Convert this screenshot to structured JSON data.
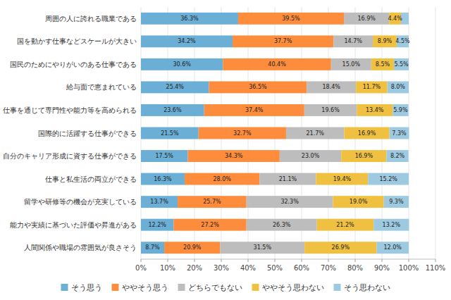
{
  "chart_data": {
    "type": "bar",
    "orientation": "horizontal",
    "stacked": true,
    "categories": [
      "周囲の人に誇れる職業である",
      "国を動かす仕事などスケールが大きい",
      "国民のためにやりがいのある仕事である",
      "給与面で恵まれている",
      "仕事を通じて専門性や能力等を高められる",
      "国際的に活躍する仕事ができる",
      "自分のキャリア形成に資する仕事ができる",
      "仕事と私生活の両立ができる",
      "留学や研修等の機会が充実している",
      "能力や実績に基づいた評価や昇進がある",
      "人間関係や職場の雰囲気が良さそう"
    ],
    "series": [
      {
        "name": "そう思う",
        "color": "#6baed6",
        "values": [
          36.3,
          34.2,
          30.6,
          25.4,
          23.6,
          21.5,
          17.5,
          16.3,
          13.7,
          12.2,
          8.7
        ],
        "value_labels": [
          "36.3%",
          "34.2%",
          "30.6%",
          "25.4%",
          "23.6%",
          "21.5%",
          "17.5%",
          "16.3%",
          "13.7%",
          "12.2%",
          "8.7%"
        ]
      },
      {
        "name": "ややそう思う",
        "color": "#fd8d3c",
        "values": [
          39.5,
          37.7,
          40.4,
          36.5,
          37.4,
          32.7,
          34.3,
          28.0,
          25.7,
          27.2,
          20.9
        ],
        "value_labels": [
          "39.5%",
          "37.7%",
          "40.4%",
          "36.5%",
          "37.4%",
          "32.7%",
          "34.3%",
          "28.0%",
          "25.7%",
          "27.2%",
          "20.9%"
        ]
      },
      {
        "name": "どちらでもない",
        "color": "#bdbdbd",
        "values": [
          16.9,
          14.7,
          15.0,
          18.4,
          19.6,
          21.7,
          23.0,
          21.1,
          32.3,
          26.3,
          31.5
        ],
        "value_labels": [
          "16.9%",
          "14.7%",
          "15.0%",
          "18.4%",
          "19.6%",
          "21.7%",
          "23.0%",
          "21.1%",
          "32.3%",
          "26.3%",
          "31.5%"
        ]
      },
      {
        "name": "ややそう思わない",
        "color": "#f0c040",
        "values": [
          4.4,
          8.9,
          8.5,
          11.7,
          13.4,
          16.9,
          16.9,
          19.4,
          19.0,
          21.2,
          26.9
        ],
        "value_labels": [
          "4.4%",
          "8.9%",
          "8.5%",
          "11.7%",
          "13.4%",
          "16.9%",
          "16.9%",
          "19.4%",
          "19.0%",
          "21.2%",
          "26.9%"
        ]
      },
      {
        "name": "そう思わない",
        "color": "#9ecae1",
        "values": [
          2.9,
          4.5,
          5.5,
          8.0,
          5.9,
          7.3,
          8.2,
          15.2,
          9.3,
          13.2,
          12.0
        ],
        "value_labels": [
          null,
          "4.5%",
          "5.5%",
          "8.0%",
          "5.9%",
          "7.3%",
          "8.2%",
          "15.2%",
          "9.3%",
          "13.2%",
          "12.0%"
        ]
      }
    ],
    "xlim": [
      0,
      110
    ],
    "xticks": [
      {
        "value": 0,
        "label": "0%"
      },
      {
        "value": 10,
        "label": "10%"
      },
      {
        "value": 20,
        "label": "20%"
      },
      {
        "value": 30,
        "label": "30%"
      },
      {
        "value": 40,
        "label": "40%"
      },
      {
        "value": 50,
        "label": "50%"
      },
      {
        "value": 60,
        "label": "60%"
      },
      {
        "value": 70,
        "label": "70%"
      },
      {
        "value": 80,
        "label": "80%"
      },
      {
        "value": 90,
        "label": "90%"
      },
      {
        "value": 100,
        "label": "100%"
      },
      {
        "value": 110,
        "label": "110%"
      }
    ],
    "grid": true,
    "legend": "bottom",
    "data_labels": true
  }
}
